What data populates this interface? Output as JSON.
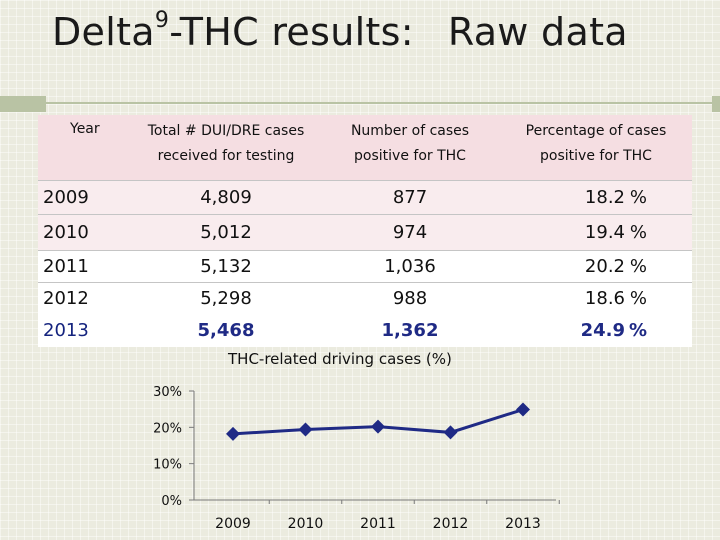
{
  "title": {
    "main": "Delta",
    "sup": "9",
    "rest": "-THC results:",
    "tail": "Raw data"
  },
  "table": {
    "headers": {
      "year": "Year",
      "total_l1": "Total # DUI/DRE cases",
      "total_l2": "received for testing",
      "positive_l1": "Number of cases",
      "positive_l2": "positive for THC",
      "pct_l1": "Percentage of cases",
      "pct_l2": "positive for THC"
    },
    "rows": [
      {
        "year": "2009",
        "total": "4,809",
        "positive": "877",
        "pct": "18.2",
        "pct_sign": "%"
      },
      {
        "year": "2010",
        "total": "5,012",
        "positive": "974",
        "pct": "19.4",
        "pct_sign": "%"
      },
      {
        "year": "2011",
        "total": "5,132",
        "positive": "1,036",
        "pct": "20.2",
        "pct_sign": "%"
      },
      {
        "year": "2012",
        "total": "5,298",
        "positive": "988",
        "pct": "18.6",
        "pct_sign": "%"
      },
      {
        "year": "2013",
        "total": "5,468",
        "positive": "1,362",
        "pct": "24.9",
        "pct_sign": "%"
      }
    ]
  },
  "chart_data": {
    "type": "line",
    "title": "THC-related driving cases (%)",
    "x": [
      "2009",
      "2010",
      "2011",
      "2012",
      "2013"
    ],
    "series": [
      {
        "values": [
          18.2,
          19.4,
          20.2,
          18.6,
          24.9
        ]
      }
    ],
    "ylim": [
      0,
      30
    ],
    "yticks": [
      0,
      10,
      20,
      30
    ],
    "ytick_labels": [
      "0%",
      "10%",
      "20%",
      "30%"
    ],
    "xlabel": "",
    "ylabel": "",
    "grid": false,
    "legend": "none",
    "line_color": "#1f2a85"
  }
}
